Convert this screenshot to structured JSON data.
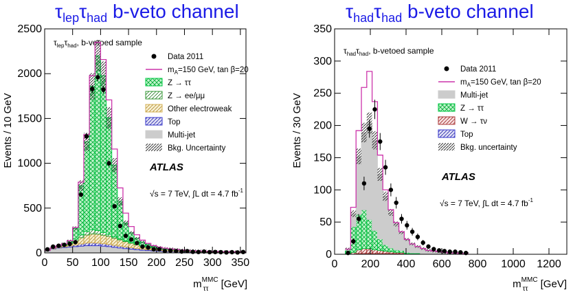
{
  "chart_data": [
    {
      "type": "bar",
      "title": "τlepτhad b-veto channel",
      "title_main": "τ",
      "title_sub1": "lep",
      "title_mid": "τ",
      "title_sub2": "had",
      "title_rest": " b-veto channel",
      "ylabel": "Events / 10 GeV",
      "xlabel_main": "m",
      "xlabel_sup": "MMC",
      "xlabel_sub": "ττ",
      "xlabel_unit": " [GeV]",
      "sample_label_a": "τ",
      "sample_label_b": "lep",
      "sample_label_c": "τ",
      "sample_label_d": "had",
      "sample_label_e": ", b-vetoed sample",
      "atlas_label": "ATLAS",
      "energy_label": "√s = 7 TeV, ∫L dt = 4.7 fb",
      "energy_sup": "-1",
      "xlim": [
        0,
        360
      ],
      "ylim": [
        0,
        2500
      ],
      "xticks": [
        0,
        50,
        100,
        150,
        200,
        250,
        300,
        350
      ],
      "yticks": [
        0,
        500,
        1000,
        1500,
        2000,
        2500
      ],
      "bin_width": 10,
      "x": [
        0,
        10,
        20,
        30,
        40,
        50,
        60,
        70,
        80,
        90,
        100,
        110,
        120,
        130,
        140,
        150,
        160,
        170,
        180,
        190,
        200,
        210,
        220,
        230,
        240,
        250,
        260,
        270,
        280,
        290,
        300,
        310,
        320,
        330,
        340,
        350
      ],
      "series": [
        {
          "name": "Multi-jet",
          "color": "#cccccc",
          "values": [
            25,
            45,
            55,
            60,
            65,
            70,
            75,
            80,
            80,
            80,
            75,
            70,
            62,
            55,
            48,
            42,
            36,
            30,
            26,
            22,
            19,
            16,
            14,
            12,
            10,
            9,
            8,
            7,
            6,
            5,
            5,
            4,
            4,
            3,
            3,
            3
          ]
        },
        {
          "name": "Top",
          "color": "#3333cc",
          "values": [
            2,
            3,
            5,
            8,
            12,
            18,
            25,
            30,
            32,
            30,
            28,
            25,
            22,
            20,
            18,
            16,
            14,
            12,
            10,
            9,
            8,
            7,
            6,
            5,
            5,
            4,
            4,
            3,
            3,
            3,
            2,
            2,
            2,
            2,
            2,
            2
          ]
        },
        {
          "name": "Other electroweak",
          "color": "#d4b055",
          "values": [
            2,
            4,
            8,
            15,
            25,
            45,
            70,
            90,
            100,
            100,
            95,
            90,
            80,
            70,
            60,
            50,
            42,
            35,
            30,
            25,
            20,
            17,
            15,
            13,
            11,
            10,
            9,
            8,
            7,
            6,
            6,
            5,
            5,
            4,
            4,
            4
          ]
        },
        {
          "name": "Z → ee/μμ",
          "color": "#339933",
          "values": [
            1,
            2,
            5,
            8,
            15,
            20,
            30,
            40,
            45,
            40,
            30,
            22,
            15,
            10,
            8,
            6,
            5,
            4,
            3,
            3,
            2,
            2,
            2,
            2,
            1,
            1,
            1,
            1,
            1,
            1,
            1,
            1,
            1,
            1,
            1,
            1
          ]
        },
        {
          "name": "Z → ττ",
          "color": "#00cc44",
          "values": [
            0,
            2,
            5,
            8,
            15,
            120,
            550,
            1000,
            1600,
            1950,
            1750,
            1300,
            800,
            420,
            200,
            110,
            65,
            40,
            25,
            16,
            11,
            8,
            6,
            5,
            4,
            3,
            3,
            2,
            2,
            2,
            2,
            1,
            1,
            1,
            1,
            1
          ]
        }
      ],
      "signal": {
        "name": "mA=150 GeV, tanβ=20",
        "color": "#cc33aa",
        "values": [
          0,
          0,
          0,
          1,
          3,
          10,
          40,
          80,
          120,
          150,
          180,
          200,
          180,
          150,
          110,
          70,
          40,
          22,
          12,
          6,
          4,
          3,
          2,
          1,
          1,
          1,
          0,
          0,
          0,
          0,
          0,
          0,
          0,
          0,
          0,
          0
        ]
      },
      "data": {
        "name": "Data 2011",
        "values": [
          40,
          70,
          80,
          90,
          100,
          120,
          650,
          1300,
          1830,
          1960,
          1820,
          1000,
          520,
          300,
          190,
          150,
          110,
          70,
          60,
          40,
          40,
          20,
          25,
          20,
          15,
          20,
          12,
          10,
          15,
          8,
          10,
          8,
          5,
          8,
          5,
          10
        ]
      },
      "legend": [
        {
          "label": "Data 2011",
          "kind": "marker"
        },
        {
          "label": "m",
          "label_sub": "A",
          "label_rest": "=150 GeV, tan β=20",
          "kind": "line",
          "color": "#cc33aa"
        },
        {
          "label": "Z → ττ",
          "kind": "box",
          "color": "#00cc44",
          "hatch": "cross"
        },
        {
          "label": "Z → ee/μμ",
          "kind": "box",
          "color": "#339933",
          "hatch": "diag"
        },
        {
          "label": "Other electroweak",
          "kind": "box",
          "color": "#d4b055",
          "hatch": "diag"
        },
        {
          "label": "Top",
          "kind": "box",
          "color": "#3333cc",
          "hatch": "diag"
        },
        {
          "label": "Multi-jet",
          "kind": "box",
          "color": "#cccccc",
          "hatch": "none"
        },
        {
          "label": "Bkg. Uncertainty",
          "kind": "box",
          "color": "#555555",
          "hatch": "unc"
        }
      ],
      "legend_placement": "top-right"
    },
    {
      "type": "bar",
      "title": "τhadτhad b-veto channel",
      "title_main": "τ",
      "title_sub1": "had",
      "title_mid": "τ",
      "title_sub2": "had",
      "title_rest": " b-veto channel",
      "ylabel": "Events / 30 GeV",
      "xlabel_main": "m",
      "xlabel_sup": "MMC",
      "xlabel_sub": "ττ",
      "xlabel_unit": " [GeV]",
      "sample_label_a": "τ",
      "sample_label_b": "had",
      "sample_label_c": "τ",
      "sample_label_d": "had",
      "sample_label_e": ", b-vetoed sample",
      "atlas_label": "ATLAS",
      "energy_label": "√s = 7 TeV, ∫L dt = 4.7 fb",
      "energy_sup": "-1",
      "xlim": [
        0,
        1300
      ],
      "ylim": [
        0,
        350
      ],
      "xticks": [
        0,
        200,
        400,
        600,
        800,
        1000,
        1200
      ],
      "yticks": [
        0,
        50,
        100,
        150,
        200,
        250,
        300,
        350
      ],
      "bin_width": 30,
      "x": [
        60,
        90,
        120,
        150,
        180,
        210,
        240,
        270,
        300,
        330,
        360,
        390,
        420,
        450,
        480,
        510,
        540,
        570,
        600,
        630,
        660,
        690,
        720
      ],
      "series": [
        {
          "name": "Top",
          "color": "#3333cc",
          "values": [
            0,
            0,
            1,
            1,
            1,
            1,
            1,
            1,
            1,
            1,
            1,
            0,
            0,
            0,
            0,
            0,
            0,
            0,
            0,
            0,
            0,
            0,
            0
          ]
        },
        {
          "name": "W → τν",
          "color": "#aa3333",
          "values": [
            1,
            3,
            6,
            8,
            8,
            6,
            5,
            4,
            3,
            2,
            2,
            1,
            1,
            1,
            0,
            0,
            0,
            0,
            0,
            0,
            0,
            0,
            0
          ]
        },
        {
          "name": "Z → ττ",
          "color": "#00cc44",
          "values": [
            5,
            40,
            55,
            60,
            45,
            30,
            18,
            10,
            6,
            4,
            3,
            2,
            1,
            1,
            1,
            0,
            0,
            0,
            0,
            0,
            0,
            0,
            0
          ]
        },
        {
          "name": "Multi-jet",
          "color": "#cccccc",
          "values": [
            2,
            20,
            90,
            120,
            150,
            140,
            100,
            75,
            55,
            40,
            28,
            20,
            14,
            10,
            8,
            6,
            5,
            4,
            3,
            2,
            2,
            1,
            1
          ]
        }
      ],
      "signal": {
        "name": "mA=150 GeV, tanβ=20",
        "color": "#cc33aa",
        "values": [
          0,
          10,
          40,
          70,
          80,
          60,
          30,
          10,
          4,
          2,
          1,
          0,
          0,
          0,
          0,
          0,
          0,
          0,
          0,
          0,
          0,
          0,
          0
        ]
      },
      "data": {
        "name": "Data 2011",
        "values": [
          2,
          20,
          55,
          110,
          195,
          225,
          175,
          135,
          100,
          80,
          55,
          45,
          35,
          27,
          18,
          12,
          8,
          6,
          5,
          4,
          4,
          3,
          2
        ]
      },
      "legend": [
        {
          "label": "Data 2011",
          "kind": "marker"
        },
        {
          "label": "m",
          "label_sub": "A",
          "label_rest": "=150 GeV, tan β=20",
          "kind": "line",
          "color": "#cc33aa"
        },
        {
          "label": "Multi-jet",
          "kind": "box",
          "color": "#cccccc",
          "hatch": "none"
        },
        {
          "label": "Z → ττ",
          "kind": "box",
          "color": "#00cc44",
          "hatch": "cross"
        },
        {
          "label": "W → τν",
          "kind": "box",
          "color": "#aa3333",
          "hatch": "diag"
        },
        {
          "label": "Top",
          "kind": "box",
          "color": "#3333cc",
          "hatch": "diag"
        },
        {
          "label": "Bkg. uncertainty",
          "kind": "box",
          "color": "#555555",
          "hatch": "unc"
        }
      ],
      "legend_placement": "top-right"
    }
  ]
}
